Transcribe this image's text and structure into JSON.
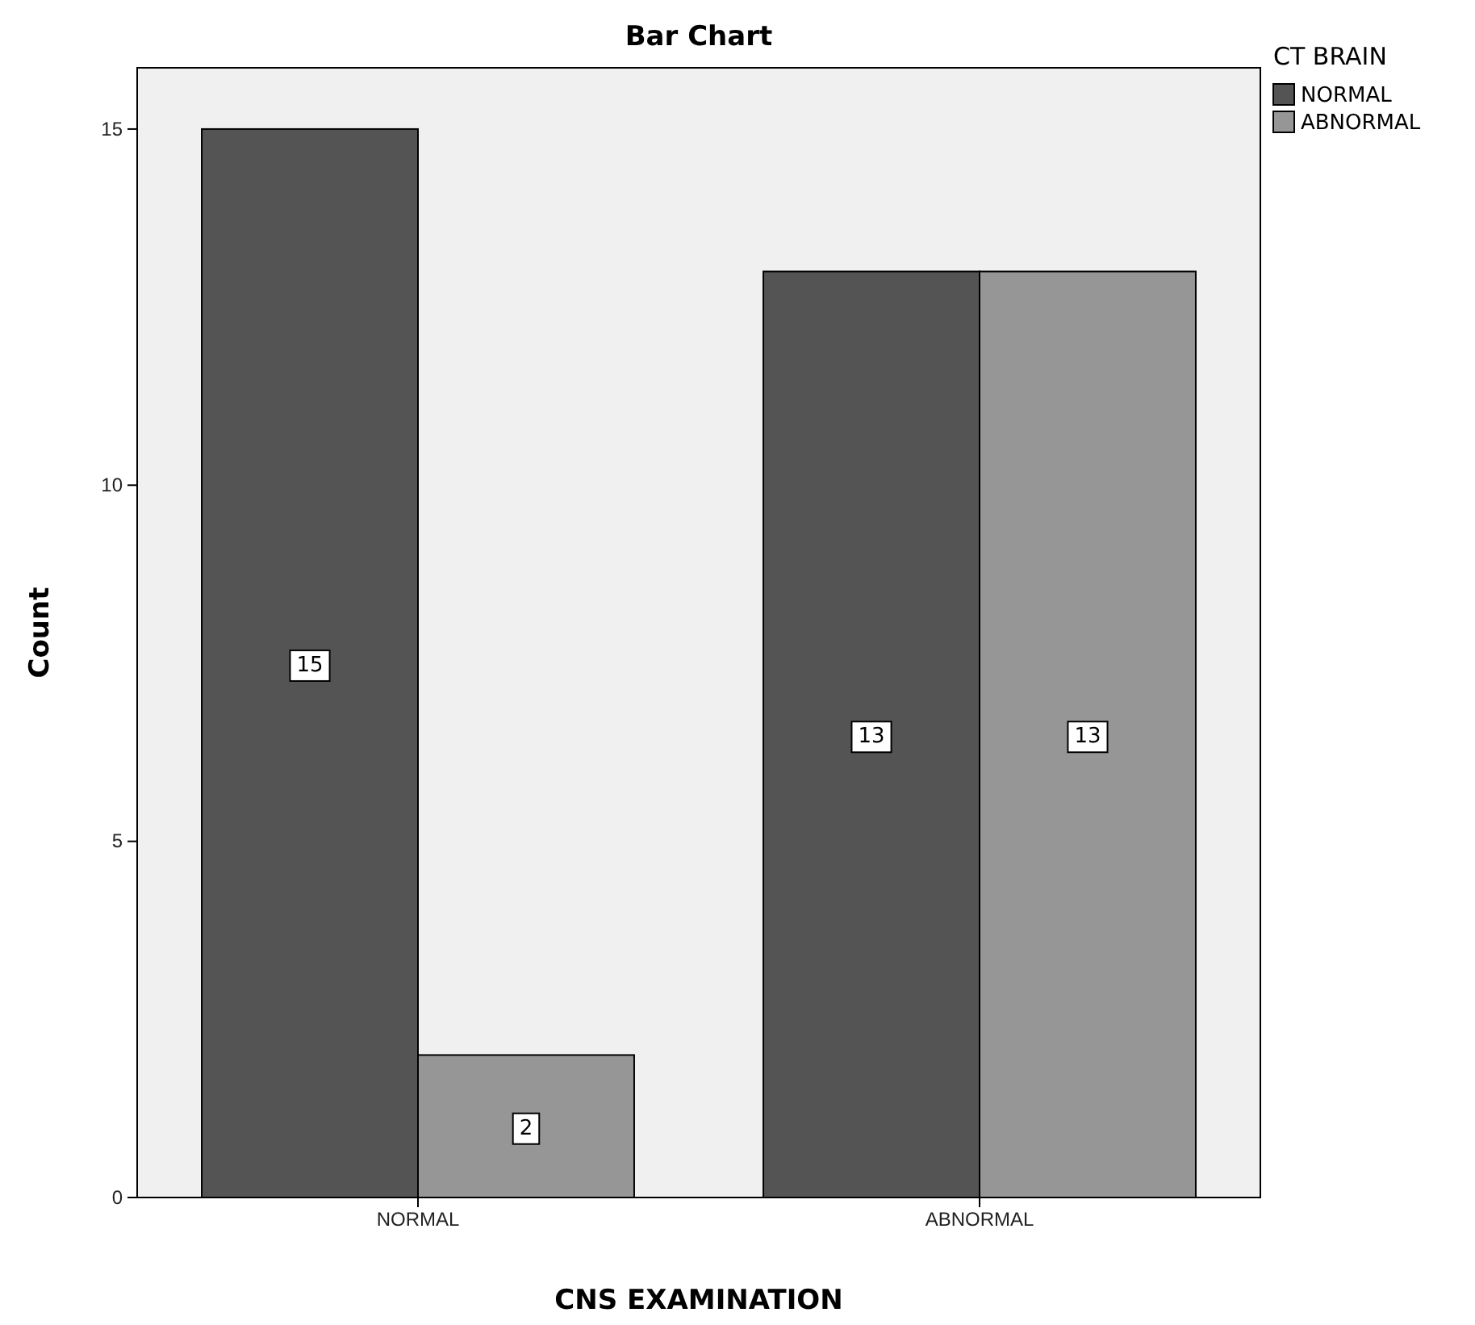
{
  "chart_data": {
    "type": "bar",
    "title": "Bar Chart",
    "xlabel": "CNS EXAMINATION",
    "ylabel": "Count",
    "legend_title": "CT BRAIN",
    "categories": [
      "NORMAL",
      "ABNORMAL"
    ],
    "series": [
      {
        "name": "NORMAL",
        "color": "#545454",
        "values": [
          15,
          13
        ]
      },
      {
        "name": "ABNORMAL",
        "color": "#969696",
        "values": [
          2,
          13
        ]
      }
    ],
    "ylim": [
      0,
      15.86
    ],
    "yticks": [
      0,
      5,
      10,
      15
    ],
    "data_labels": true,
    "legend": "top right",
    "grid": false
  }
}
